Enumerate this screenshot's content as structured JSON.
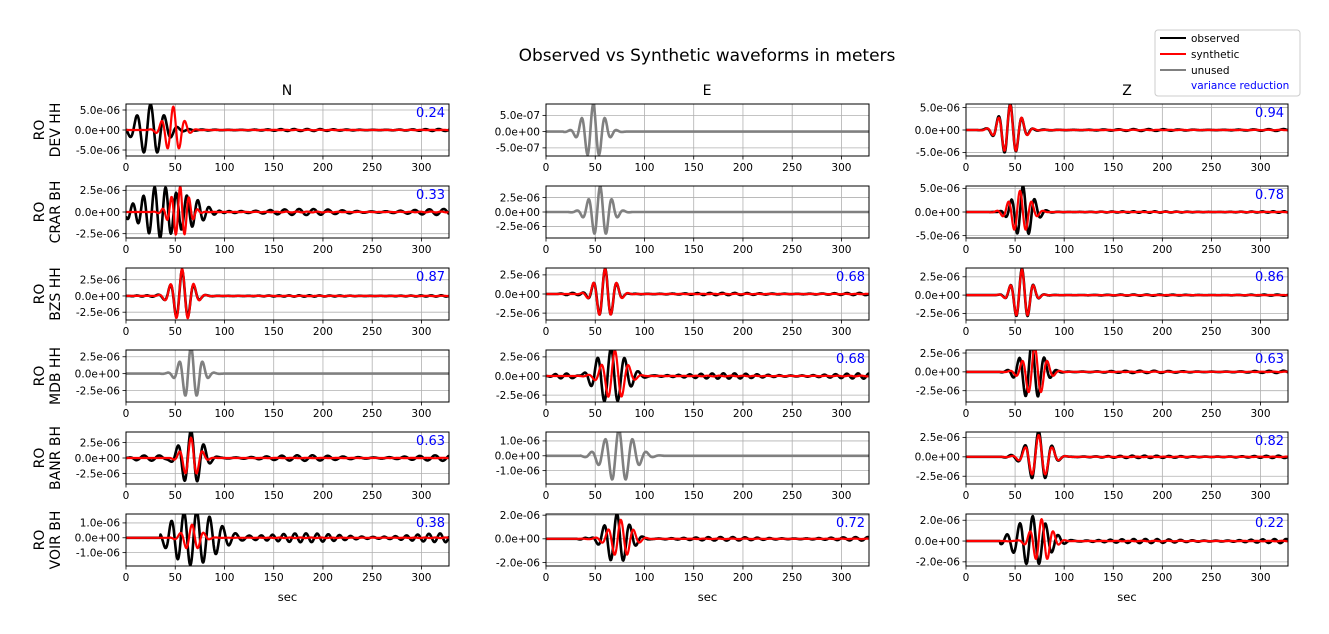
{
  "chart_data": {
    "type": "line",
    "title": "Observed vs Synthetic waveforms in meters",
    "xlabel": "sec",
    "xlim": [
      0,
      328
    ],
    "xticks": [
      0,
      50,
      100,
      150,
      200,
      250,
      300
    ],
    "grid": true,
    "columns": [
      "N",
      "E",
      "Z"
    ],
    "colors": {
      "observed": "#000000",
      "synthetic": "#ff0000",
      "unused": "#808080",
      "variance_reduction": "#0000ff",
      "grid": "#b0b0b0"
    },
    "legend": {
      "placement": "top-right",
      "entries": [
        {
          "label": "observed",
          "kind": "line",
          "color": "#000000"
        },
        {
          "label": "synthetic",
          "kind": "line",
          "color": "#ff0000"
        },
        {
          "label": "unused",
          "kind": "line",
          "color": "#808080"
        },
        {
          "label": "variance reduction",
          "kind": "text",
          "color": "#0000ff"
        }
      ]
    },
    "rows": [
      {
        "label_line1": "RO",
        "label_line2": "DEV HH",
        "panels": [
          {
            "component": "N",
            "used": true,
            "variance_reduction": "0.24",
            "ylim": [
              -6.5e-06,
              6.5e-06
            ],
            "yticks": [
              "5.0e-06",
              "0.0e+00",
              "-5.0e-06"
            ],
            "ytick_values": [
              5e-06,
              0,
              -5e-06
            ],
            "wave": {
              "obs": {
                "onset": 0,
                "peak_t": 25,
                "amp": 6.3e-06,
                "period": 14,
                "width": 18,
                "tail_amp": 2.5e-07
              },
              "syn": {
                "onset": 20,
                "peak_t": 48,
                "amp": 5.8e-06,
                "period": 12,
                "width": 12,
                "tail_amp": 5e-08
              }
            }
          },
          {
            "component": "E",
            "used": false,
            "variance_reduction": "",
            "ylim": [
              -7.5e-07,
              8.5e-07
            ],
            "yticks": [
              "5.0e-07",
              "0.0e+00",
              "-5.0e-07"
            ],
            "ytick_values": [
              5e-07,
              0,
              -5e-07
            ],
            "wave": {
              "obs": {
                "onset": 18,
                "peak_t": 48,
                "amp": 8.5e-07,
                "period": 12,
                "width": 14,
                "tail_amp": 0.0
              }
            }
          },
          {
            "component": "Z",
            "used": true,
            "variance_reduction": "0.94",
            "ylim": [
              -5.8e-06,
              5.8e-06
            ],
            "yticks": [
              "5.0e-06",
              "0.0e+00",
              "-5.0e-06"
            ],
            "ytick_values": [
              5e-06,
              0,
              -5e-06
            ],
            "wave": {
              "obs": {
                "onset": 10,
                "peak_t": 45,
                "amp": 5.8e-06,
                "period": 12,
                "width": 14,
                "tail_amp": 2e-07
              },
              "syn": {
                "onset": 10,
                "peak_t": 45,
                "amp": 5.5e-06,
                "period": 12,
                "width": 14,
                "tail_amp": 5e-08
              }
            }
          }
        ]
      },
      {
        "label_line1": "RO",
        "label_line2": "CRAR BH",
        "panels": [
          {
            "component": "N",
            "used": true,
            "variance_reduction": "0.33",
            "ylim": [
              -3e-06,
              3e-06
            ],
            "yticks": [
              "2.5e-06",
              "0.0e+00",
              "-2.5e-06"
            ],
            "ytick_values": [
              2.5e-06,
              0,
              -2.5e-06
            ],
            "wave": {
              "obs": {
                "onset": 0,
                "peak_t": 40,
                "amp": 2.8e-06,
                "period": 11,
                "width": 35,
                "tail_amp": 3.5e-07
              },
              "syn": {
                "onset": 25,
                "peak_t": 55,
                "amp": 3e-06,
                "period": 9,
                "width": 12,
                "tail_amp": 5e-08
              }
            }
          },
          {
            "component": "E",
            "used": false,
            "variance_reduction": "",
            "ylim": [
              -4.5e-06,
              4.5e-06
            ],
            "yticks": [
              "2.5e-06",
              "0.0e+00",
              "-2.5e-06"
            ],
            "ytick_values": [
              2.5e-06,
              0,
              -2.5e-06
            ],
            "wave": {
              "obs": {
                "onset": 20,
                "peak_t": 55,
                "amp": 4.5e-06,
                "period": 12,
                "width": 14,
                "tail_amp": 0.0
              }
            }
          },
          {
            "component": "Z",
            "used": true,
            "variance_reduction": "0.78",
            "ylim": [
              -5.5e-06,
              5.5e-06
            ],
            "yticks": [
              "5.0e-06",
              "0.0e+00",
              "-5.0e-06"
            ],
            "ytick_values": [
              5e-06,
              0,
              -5e-06
            ],
            "wave": {
              "obs": {
                "onset": 22,
                "peak_t": 58,
                "amp": 5.5e-06,
                "period": 12,
                "width": 14,
                "tail_amp": 1.5e-07
              },
              "syn": {
                "onset": 22,
                "peak_t": 55,
                "amp": 4.5e-06,
                "period": 12,
                "width": 14,
                "tail_amp": 3e-08
              }
            }
          }
        ]
      },
      {
        "label_line1": "RO",
        "label_line2": "BZS HH",
        "panels": [
          {
            "component": "N",
            "used": true,
            "variance_reduction": "0.87",
            "ylim": [
              -3.7e-06,
              4.3e-06
            ],
            "yticks": [
              "2.5e-06",
              "0.0e+00",
              "-2.5e-06"
            ],
            "ytick_values": [
              2.5e-06,
              0,
              -2.5e-06
            ],
            "wave": {
              "obs": {
                "onset": 0,
                "peak_t": 57,
                "amp": 4e-06,
                "period": 12,
                "width": 13,
                "tail_amp": 1e-07
              },
              "syn": {
                "onset": 30,
                "peak_t": 57,
                "amp": 4.2e-06,
                "period": 12,
                "width": 13,
                "tail_amp": 3e-08
              }
            }
          },
          {
            "component": "E",
            "used": true,
            "variance_reduction": "0.68",
            "ylim": [
              -3.4e-06,
              3.4e-06
            ],
            "yticks": [
              "2.5e-06",
              "0.0e+00",
              "-2.5e-06"
            ],
            "ytick_values": [
              2.5e-06,
              0,
              -2.5e-06
            ],
            "wave": {
              "obs": {
                "onset": 10,
                "peak_t": 60,
                "amp": 3.4e-06,
                "period": 12,
                "width": 13,
                "tail_amp": 1.5e-07
              },
              "syn": {
                "onset": 30,
                "peak_t": 60,
                "amp": 3.3e-06,
                "period": 12,
                "width": 13,
                "tail_amp": 3e-08
              }
            }
          },
          {
            "component": "Z",
            "used": true,
            "variance_reduction": "0.86",
            "ylim": [
              -3.4e-06,
              3.7e-06
            ],
            "yticks": [
              "2.5e-06",
              "0.0e+00",
              "-2.5e-06"
            ],
            "ytick_values": [
              2.5e-06,
              0,
              -2.5e-06
            ],
            "wave": {
              "obs": {
                "onset": 30,
                "peak_t": 57,
                "amp": 3.7e-06,
                "period": 12,
                "width": 12,
                "tail_amp": 8e-08
              },
              "syn": {
                "onset": 30,
                "peak_t": 57,
                "amp": 3.5e-06,
                "period": 12,
                "width": 12,
                "tail_amp": 2e-08
              }
            }
          }
        ]
      },
      {
        "label_line1": "RO",
        "label_line2": "MDB HH",
        "panels": [
          {
            "component": "N",
            "used": false,
            "variance_reduction": "",
            "ylim": [
              -4.2e-06,
              3.5e-06
            ],
            "yticks": [
              "2.5e-06",
              "0.0e+00",
              "-2.5e-06"
            ],
            "ytick_values": [
              2.5e-06,
              0,
              -2.5e-06
            ],
            "wave": {
              "obs": {
                "onset": 35,
                "peak_t": 66,
                "amp": 4e-06,
                "period": 12,
                "width": 13,
                "tail_amp": 0.0
              }
            }
          },
          {
            "component": "E",
            "used": true,
            "variance_reduction": "0.68",
            "ylim": [
              -3.4e-06,
              3.4e-06
            ],
            "yticks": [
              "2.5e-06",
              "0.0e+00",
              "-2.5e-06"
            ],
            "ytick_values": [
              2.5e-06,
              0,
              -2.5e-06
            ],
            "wave": {
              "obs": {
                "onset": 0,
                "peak_t": 66,
                "amp": 3.4e-06,
                "period": 14,
                "width": 22,
                "tail_amp": 3.5e-07
              },
              "syn": {
                "onset": 30,
                "peak_t": 70,
                "amp": 3.3e-06,
                "period": 14,
                "width": 15,
                "tail_amp": 5e-08
              }
            }
          },
          {
            "component": "Z",
            "used": true,
            "variance_reduction": "0.63",
            "ylim": [
              -4e-06,
              2.9e-06
            ],
            "yticks": [
              "2.5e-06",
              "0.0e+00",
              "-2.5e-06"
            ],
            "ytick_values": [
              2.5e-06,
              0,
              -2.5e-06
            ],
            "wave": {
              "obs": {
                "onset": 35,
                "peak_t": 67,
                "amp": 4e-06,
                "period": 13,
                "width": 15,
                "tail_amp": 1.5e-07
              },
              "syn": {
                "onset": 35,
                "peak_t": 70,
                "amp": 3.3e-06,
                "period": 13,
                "width": 14,
                "tail_amp": 3e-08
              }
            }
          }
        ]
      },
      {
        "label_line1": "RO",
        "label_line2": "BANR BH",
        "panels": [
          {
            "component": "N",
            "used": true,
            "variance_reduction": "0.63",
            "ylim": [
              -4.2e-06,
              4.2e-06
            ],
            "yticks": [
              "2.5e-06",
              "0.0e+00",
              "-2.5e-06"
            ],
            "ytick_values": [
              2.5e-06,
              0,
              -2.5e-06
            ],
            "wave": {
              "obs": {
                "onset": 0,
                "peak_t": 66,
                "amp": 4.2e-06,
                "period": 13,
                "width": 15,
                "tail_amp": 4.5e-07
              },
              "syn": {
                "onset": 45,
                "peak_t": 66,
                "amp": 3.3e-06,
                "period": 12,
                "width": 11,
                "tail_amp": 3e-08
              }
            }
          },
          {
            "component": "E",
            "used": false,
            "variance_reduction": "",
            "ylim": [
              -1.9e-06,
              1.6e-06
            ],
            "yticks": [
              "1.0e-06",
              "0.0e+00",
              "-1.0e-06"
            ],
            "ytick_values": [
              1e-06,
              0,
              -1e-06
            ],
            "wave": {
              "obs": {
                "onset": 35,
                "peak_t": 74,
                "amp": 1.8e-06,
                "period": 14,
                "width": 20,
                "tail_amp": 0.0
              }
            }
          },
          {
            "component": "Z",
            "used": true,
            "variance_reduction": "0.82",
            "ylim": [
              -3.5e-06,
              3.2e-06
            ],
            "yticks": [
              "2.5e-06",
              "0.0e+00",
              "-2.5e-06"
            ],
            "ytick_values": [
              2.5e-06,
              0,
              -2.5e-06
            ],
            "wave": {
              "obs": {
                "onset": 35,
                "peak_t": 74,
                "amp": 3.4e-06,
                "period": 14,
                "width": 15,
                "tail_amp": 1.5e-07
              },
              "syn": {
                "onset": 35,
                "peak_t": 74,
                "amp": 2.8e-06,
                "period": 14,
                "width": 15,
                "tail_amp": 3e-08
              }
            }
          }
        ]
      },
      {
        "label_line1": "RO",
        "label_line2": "VOIR BH",
        "panels": [
          {
            "component": "N",
            "used": true,
            "variance_reduction": "0.38",
            "ylim": [
              -1.9e-06,
              1.6e-06
            ],
            "yticks": [
              "1.0e-06",
              "0.0e+00",
              "-1.0e-06"
            ],
            "ytick_values": [
              1e-06,
              0,
              -1e-06
            ],
            "wave": {
              "obs": {
                "onset": 35,
                "peak_t": 72,
                "amp": 1.8e-06,
                "period": 13,
                "width": 30,
                "tail_amp": 3e-07
              },
              "syn": {
                "onset": 45,
                "peak_t": 67,
                "amp": 9e-07,
                "period": 12,
                "width": 12,
                "tail_amp": 2e-08
              }
            }
          },
          {
            "component": "E",
            "used": true,
            "variance_reduction": "0.72",
            "ylim": [
              -2.3e-06,
              2.1e-06
            ],
            "yticks": [
              "2.0e-06",
              "0.0e+00",
              "-2.0e-06"
            ],
            "ytick_values": [
              2e-06,
              0,
              -2e-06
            ],
            "wave": {
              "obs": {
                "onset": 30,
                "peak_t": 72,
                "amp": 2.2e-06,
                "period": 13,
                "width": 17,
                "tail_amp": 1.5e-07
              },
              "syn": {
                "onset": 30,
                "peak_t": 76,
                "amp": 1.6e-06,
                "period": 13,
                "width": 15,
                "tail_amp": 2e-08
              }
            }
          },
          {
            "component": "Z",
            "used": true,
            "variance_reduction": "0.22",
            "ylim": [
              -2.4e-06,
              2.6e-06
            ],
            "yticks": [
              "2.0e-06",
              "0.0e+00",
              "-2.0e-06"
            ],
            "ytick_values": [
              2e-06,
              0,
              -2e-06
            ],
            "wave": {
              "obs": {
                "onset": 35,
                "peak_t": 68,
                "amp": 2.5e-06,
                "period": 13,
                "width": 22,
                "tail_amp": 2e-07
              },
              "syn": {
                "onset": 35,
                "peak_t": 77,
                "amp": 2.1e-06,
                "period": 12,
                "width": 13,
                "tail_amp": 3e-08
              }
            }
          }
        ]
      }
    ]
  }
}
